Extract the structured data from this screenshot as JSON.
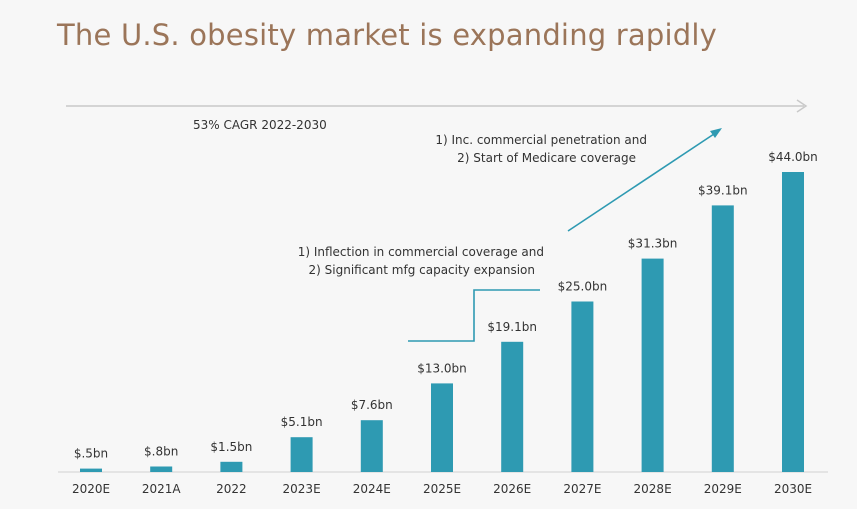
{
  "title": "The U.S. obesity market is expanding rapidly",
  "colors": {
    "bar": "#2e9ab2",
    "title": "#9b7559",
    "arrow": "#2e9ab2",
    "cagr_arrow": "#c9c9c9",
    "axis": "#d0d0d0"
  },
  "cagr_label": "53% CAGR 2022-2030",
  "annotation_1": [
    "1) Inflection in commercial coverage and",
    "2) Significant mfg capacity expansion"
  ],
  "annotation_2": [
    "1) Inc. commercial penetration and",
    "2) Start of Medicare coverage"
  ],
  "chart_data": {
    "type": "bar",
    "title": "The U.S. obesity market is expanding rapidly",
    "xlabel": "",
    "ylabel": "",
    "ylim": [
      0,
      44
    ],
    "grid": false,
    "categories": [
      "2020E",
      "2021A",
      "2022",
      "2023E",
      "2024E",
      "2025E",
      "2026E",
      "2027E",
      "2028E",
      "2029E",
      "2030E"
    ],
    "values": [
      0.5,
      0.8,
      1.5,
      5.1,
      7.6,
      13.0,
      19.1,
      25.0,
      31.3,
      39.1,
      44.0
    ],
    "value_labels": [
      "$.5bn",
      "$.8bn",
      "$1.5bn",
      "$5.1bn",
      "$7.6bn",
      "$13.0bn",
      "$19.1bn",
      "$25.0bn",
      "$31.3bn",
      "$39.1bn",
      "$44.0bn"
    ]
  }
}
